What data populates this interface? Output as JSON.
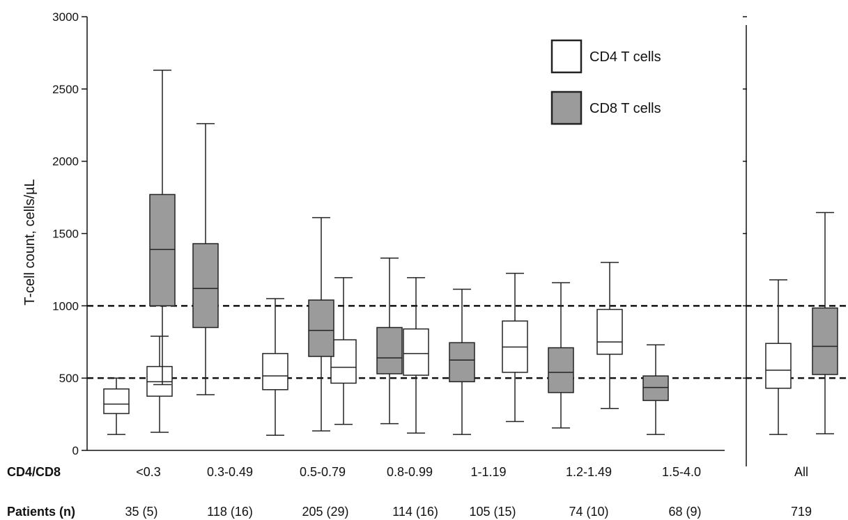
{
  "colors": {
    "cd4_fill": "#ffffff",
    "cd8_fill": "#9b9b9b",
    "stroke": "#222222"
  },
  "chart_data": {
    "type": "box",
    "ylabel": "T-cell count, cells/µL",
    "ylim": [
      0,
      3000
    ],
    "yticks": [
      0,
      500,
      1000,
      1500,
      2000,
      2500,
      3000
    ],
    "reference_lines": [
      500,
      1000
    ],
    "row_labels": {
      "ratio": "CD4/CD8",
      "patients": "Patients (n)"
    },
    "categories": [
      "<0.3",
      "0.3-0.49",
      "0.5-0.79",
      "0.8-0.99",
      "1-1.19",
      "1.2-1.49",
      "1.5-4.0",
      "All"
    ],
    "patients": [
      "35 (5)",
      "118 (16)",
      "205 (29)",
      "114 (16)",
      "105 (15)",
      "74 (10)",
      "68 (9)",
      "719"
    ],
    "legend": {
      "position": "top-right",
      "items": [
        {
          "label": "CD4 T cells",
          "series": "cd4"
        },
        {
          "label": "CD8 T cells",
          "series": "cd8"
        }
      ]
    },
    "series": [
      {
        "name": "CD4 T cells",
        "key": "cd4",
        "boxes": [
          {
            "min": 110,
            "q1": 255,
            "median": 320,
            "q3": 425,
            "max": 500
          },
          {
            "min": 125,
            "q1": 375,
            "median": 475,
            "q3": 580,
            "max": 790
          },
          {
            "min": 105,
            "q1": 420,
            "median": 515,
            "q3": 670,
            "max": 1050
          },
          {
            "min": 180,
            "q1": 465,
            "median": 575,
            "q3": 765,
            "max": 1195
          },
          {
            "min": 120,
            "q1": 520,
            "median": 670,
            "q3": 840,
            "max": 1195
          },
          {
            "min": 200,
            "q1": 540,
            "median": 715,
            "q3": 895,
            "max": 1225
          },
          {
            "min": 290,
            "q1": 665,
            "median": 750,
            "q3": 975,
            "max": 1300
          },
          {
            "min": 110,
            "q1": 430,
            "median": 555,
            "q3": 740,
            "max": 1180
          }
        ]
      },
      {
        "name": "CD8 T cells",
        "key": "cd8",
        "boxes": [
          {
            "min": 455,
            "q1": 1000,
            "median": 1390,
            "q3": 1770,
            "max": 2630
          },
          {
            "min": 385,
            "q1": 850,
            "median": 1120,
            "q3": 1430,
            "max": 2260
          },
          {
            "min": 135,
            "q1": 650,
            "median": 830,
            "q3": 1040,
            "max": 1610
          },
          {
            "min": 185,
            "q1": 530,
            "median": 640,
            "q3": 850,
            "max": 1330
          },
          {
            "min": 110,
            "q1": 475,
            "median": 625,
            "q3": 745,
            "max": 1115
          },
          {
            "min": 155,
            "q1": 400,
            "median": 540,
            "q3": 710,
            "max": 1160
          },
          {
            "min": 110,
            "q1": 345,
            "median": 435,
            "q3": 515,
            "max": 730
          },
          {
            "min": 115,
            "q1": 525,
            "median": 720,
            "q3": 985,
            "max": 1645
          }
        ]
      }
    ]
  }
}
